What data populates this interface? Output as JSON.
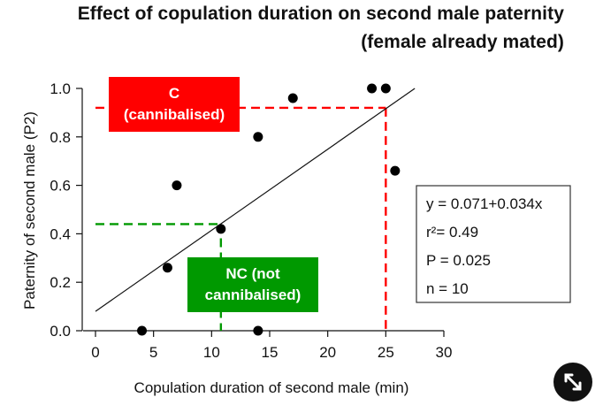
{
  "chart_data": {
    "type": "scatter",
    "title": [
      "Effect of copulation duration on second male paternity",
      "(female already mated)"
    ],
    "xlabel": "Copulation duration of second male (min)",
    "ylabel": "Paternity of second male (P2)",
    "xlim": [
      0,
      30
    ],
    "ylim": [
      0,
      1.0
    ],
    "xticks": [
      0,
      5,
      10,
      15,
      20,
      25,
      30
    ],
    "xtick_labels": [
      "0",
      "5",
      "10",
      "15",
      "20",
      "25",
      "30"
    ],
    "yticks": [
      0,
      0.2,
      0.4,
      0.6,
      0.8,
      1.0
    ],
    "ytick_labels": [
      "0.0",
      "0.2",
      "0.4",
      "0.6",
      "0.8",
      "1.0"
    ],
    "points": [
      {
        "x": 4.0,
        "y": 0.0
      },
      {
        "x": 6.2,
        "y": 0.26
      },
      {
        "x": 7.0,
        "y": 0.6
      },
      {
        "x": 10.8,
        "y": 0.42
      },
      {
        "x": 14.0,
        "y": 0.8
      },
      {
        "x": 14.0,
        "y": 0.0
      },
      {
        "x": 17.0,
        "y": 0.96
      },
      {
        "x": 23.8,
        "y": 1.0
      },
      {
        "x": 25.0,
        "y": 1.0
      },
      {
        "x": 25.8,
        "y": 0.66
      }
    ],
    "regression_line": {
      "x": [
        0,
        27.5
      ],
      "y": [
        0.08,
        1.0
      ]
    },
    "stats": [
      "y = 0.071+0.034x",
      "r²= 0.49",
      "P = 0.025",
      "n = 10"
    ],
    "annotations": [
      {
        "lines": [
          "C",
          "(cannibalised)"
        ],
        "color": "#ff0000",
        "x": 25.0,
        "y": 0.92
      },
      {
        "lines": [
          "NC (not",
          "cannibalised)"
        ],
        "color": "#009900",
        "x": 10.8,
        "y": 0.44
      }
    ],
    "grid": false
  }
}
